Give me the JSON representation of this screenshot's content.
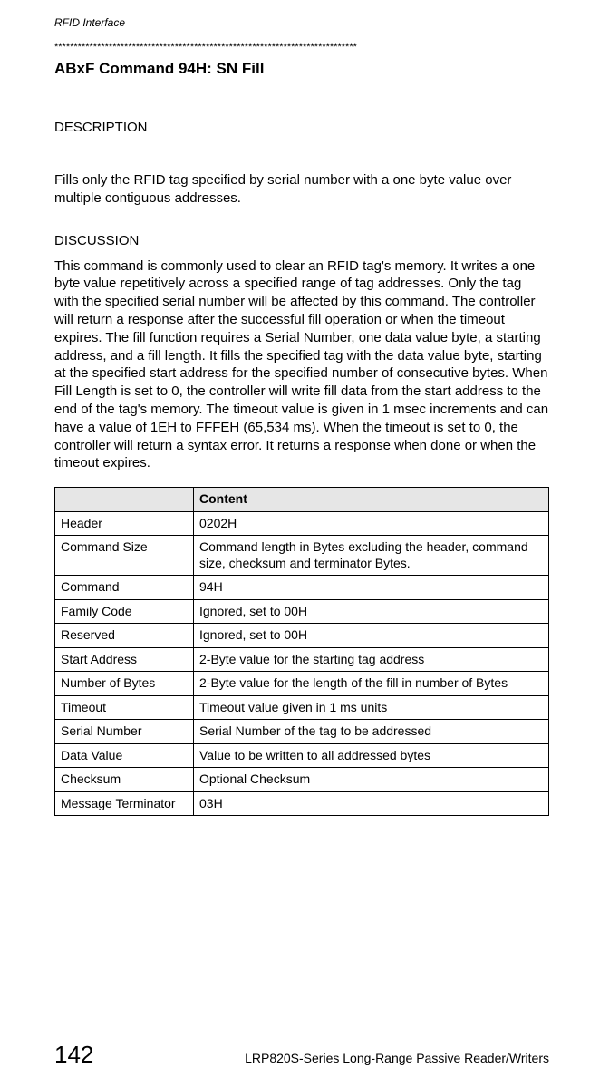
{
  "running_header": "RFID Interface",
  "divider": "******************************************************************************",
  "cmd_title": "ABxF Command 94H: SN Fill",
  "description": {
    "heading": "DESCRIPTION",
    "text": "Fills only the RFID tag specified by serial number with a one byte value over multiple contiguous addresses."
  },
  "discussion": {
    "heading": "DISCUSSION",
    "text": "This command is commonly used to clear an RFID tag's memory. It writes a one byte value repetitively across a specified range of tag addresses. Only the tag with the specified serial number will be affected by this command.  The controller will return a response after the successful fill operation or when the timeout expires.  The fill function requires a Serial Number, one data value byte, a starting address, and a fill length. It fills the specified tag with the data value byte, starting at the specified start address for the specified number of consecutive bytes. When Fill Length is set to 0, the controller will write fill data from the start address to the end of the tag's memory.  The timeout value is given in 1 msec increments and can have a value of 1EH to FFFEH (65,534 ms). When the timeout is set to 0, the controller will return a syntax error. It returns a response when done or when the timeout expires."
  },
  "table": {
    "header": {
      "col1": "",
      "col2": "Content"
    },
    "rows": [
      {
        "field": "Header",
        "content": "0202H"
      },
      {
        "field": "Command Size",
        "content": "Command length in Bytes excluding the header, command size, checksum and terminator Bytes."
      },
      {
        "field": "Command",
        "content": "94H"
      },
      {
        "field": "Family Code",
        "content": "Ignored, set to 00H"
      },
      {
        "field": "Reserved",
        "content": "Ignored, set to 00H"
      },
      {
        "field": "Start Address",
        "content": "2-Byte value for the starting tag address"
      },
      {
        "field": "Number of Bytes",
        "content": "2-Byte value for the length of the fill in number of Bytes"
      },
      {
        "field": "Timeout",
        "content": "Timeout value given in 1 ms units"
      },
      {
        "field": "Serial Number",
        "content": "Serial Number of the tag to be addressed"
      },
      {
        "field": "Data Value",
        "content": "Value to be written to all addressed bytes"
      },
      {
        "field": "Checksum",
        "content": "Optional Checksum"
      },
      {
        "field": "Message Terminator",
        "content": "03H"
      }
    ]
  },
  "footer": {
    "page_number": "142",
    "title": "LRP820S-Series Long-Range Passive Reader/Writers"
  }
}
